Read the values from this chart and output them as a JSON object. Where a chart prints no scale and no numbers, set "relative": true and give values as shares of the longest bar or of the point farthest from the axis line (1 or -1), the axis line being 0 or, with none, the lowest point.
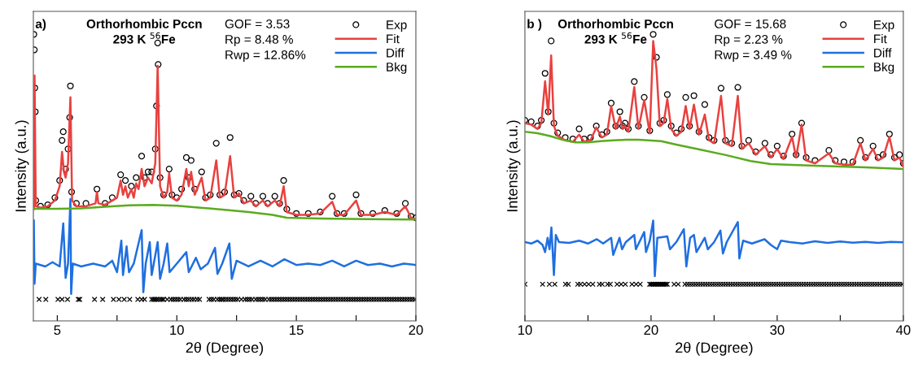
{
  "chart_data": [
    {
      "type": "line",
      "relative": true,
      "xlabel": "2θ (Degree)",
      "ylabel": "Intensity (a.u.)",
      "xlim": [
        4,
        20
      ],
      "xticks": [
        5,
        {
          "value": 7.5,
          "label": null
        },
        10,
        {
          "value": 12.5,
          "label": null
        },
        15,
        {
          "value": 17.5,
          "label": null
        },
        20
      ],
      "tick_labels": "x",
      "legend": "top right",
      "annotations": [
        "a)",
        "Orthorhombic Pccn",
        "293 K $^{56}$Fe",
        "GOF = 3.53",
        "Rp = 8.48 %",
        "Rwp = 12.86%"
      ],
      "series": [
        {
          "name": "Exp",
          "type": "scatter",
          "marker": "circle",
          "color": "#000000",
          "x": [
            4.02,
            4.04,
            4.06,
            4.08,
            4.1,
            4.3,
            4.6,
            4.9,
            5.1,
            5.2,
            5.25,
            5.35,
            5.45,
            5.52,
            5.55,
            5.6,
            5.8,
            6.2,
            6.66,
            7.0,
            7.3,
            7.65,
            7.85,
            8.1,
            8.3,
            8.53,
            8.65,
            8.8,
            8.95,
            9.1,
            9.15,
            9.2,
            9.22,
            9.3,
            9.45,
            9.68,
            9.8,
            10.0,
            10.2,
            10.4,
            10.5,
            10.6,
            10.75,
            11.04,
            11.2,
            11.4,
            11.65,
            11.8,
            12.0,
            12.23,
            12.4,
            12.6,
            12.8,
            13.1,
            13.3,
            13.6,
            13.8,
            14.1,
            14.3,
            14.47,
            14.6,
            15.0,
            15.5,
            16.0,
            16.5,
            16.7,
            17.0,
            17.5,
            17.7,
            18.2,
            18.7,
            19.2,
            19.56,
            19.8,
            20.0
          ],
          "values": [
            1.0,
            0.946,
            0.813,
            0.73,
            0.42,
            0.4,
            0.405,
            0.43,
            0.49,
            0.63,
            0.66,
            0.53,
            0.6,
            0.71,
            0.82,
            0.45,
            0.41,
            0.41,
            0.46,
            0.41,
            0.43,
            0.51,
            0.49,
            0.47,
            0.5,
            0.575,
            0.5,
            0.52,
            0.52,
            0.6,
            0.75,
            0.97,
            0.895,
            0.5,
            0.44,
            0.53,
            0.44,
            0.43,
            0.46,
            0.57,
            0.5,
            0.56,
            0.46,
            0.52,
            0.43,
            0.44,
            0.62,
            0.44,
            0.45,
            0.64,
            0.44,
            0.445,
            0.42,
            0.435,
            0.41,
            0.435,
            0.41,
            0.435,
            0.41,
            0.49,
            0.39,
            0.375,
            0.375,
            0.38,
            0.435,
            0.375,
            0.375,
            0.44,
            0.375,
            0.375,
            0.385,
            0.375,
            0.41,
            0.365,
            0.36
          ]
        },
        {
          "name": "Fit",
          "color": "#e8413f",
          "x": [
            4.02,
            4.05,
            4.1,
            4.3,
            4.6,
            4.9,
            5.1,
            5.2,
            5.28,
            5.35,
            5.45,
            5.55,
            5.62,
            5.8,
            6.2,
            6.6,
            6.66,
            6.72,
            7.0,
            7.3,
            7.5,
            7.65,
            7.75,
            7.85,
            7.95,
            8.1,
            8.2,
            8.3,
            8.4,
            8.53,
            8.65,
            8.8,
            8.95,
            9.1,
            9.2,
            9.3,
            9.45,
            9.6,
            9.68,
            9.8,
            10.0,
            10.2,
            10.4,
            10.5,
            10.6,
            10.75,
            11.04,
            11.2,
            11.4,
            11.65,
            11.8,
            12.0,
            12.23,
            12.4,
            12.6,
            12.8,
            13.1,
            13.3,
            13.6,
            13.8,
            14.1,
            14.3,
            14.47,
            14.6,
            15.0,
            15.5,
            16.0,
            16.5,
            16.7,
            17.0,
            17.5,
            17.7,
            18.2,
            18.7,
            19.2,
            19.56,
            19.8,
            20.0
          ],
          "values": [
            0.39,
            0.856,
            0.4,
            0.395,
            0.4,
            0.42,
            0.47,
            0.59,
            0.52,
            0.5,
            0.55,
            0.78,
            0.42,
            0.4,
            0.4,
            0.41,
            0.45,
            0.41,
            0.405,
            0.42,
            0.43,
            0.49,
            0.44,
            0.47,
            0.43,
            0.46,
            0.43,
            0.48,
            0.46,
            0.53,
            0.47,
            0.5,
            0.48,
            0.55,
            0.89,
            0.47,
            0.43,
            0.45,
            0.515,
            0.43,
            0.42,
            0.44,
            0.53,
            0.47,
            0.52,
            0.44,
            0.5,
            0.42,
            0.43,
            0.56,
            0.43,
            0.44,
            0.575,
            0.43,
            0.445,
            0.41,
            0.42,
            0.4,
            0.42,
            0.4,
            0.42,
            0.4,
            0.47,
            0.38,
            0.37,
            0.37,
            0.375,
            0.416,
            0.37,
            0.37,
            0.42,
            0.37,
            0.37,
            0.38,
            0.37,
            0.4,
            0.36,
            0.355
          ]
        },
        {
          "name": "Diff",
          "color": "#1f6fe0",
          "x": [
            4.02,
            4.05,
            4.1,
            4.5,
            4.8,
            5.1,
            5.25,
            5.35,
            5.45,
            5.55,
            5.58,
            5.65,
            6.0,
            6.5,
            7.0,
            7.3,
            7.5,
            7.68,
            7.75,
            7.9,
            8.0,
            8.2,
            8.53,
            8.6,
            8.7,
            8.87,
            8.95,
            9.2,
            9.3,
            9.45,
            9.6,
            9.7,
            10.0,
            10.4,
            10.5,
            10.8,
            11.0,
            11.3,
            11.6,
            11.7,
            11.9,
            12.2,
            12.3,
            12.5,
            13.0,
            13.5,
            14.0,
            14.5,
            15.0,
            15.5,
            16.0,
            16.5,
            17.0,
            17.5,
            18.0,
            18.5,
            19.0,
            19.5,
            20.0
          ],
          "values": [
            0.35,
            0.13,
            0.2,
            0.19,
            0.205,
            0.19,
            0.34,
            0.15,
            0.2,
            0.425,
            0.094,
            0.2,
            0.19,
            0.2,
            0.19,
            0.21,
            0.17,
            0.28,
            0.16,
            0.26,
            0.17,
            0.2,
            0.317,
            0.1,
            0.2,
            0.275,
            0.16,
            0.275,
            0.147,
            0.2,
            0.27,
            0.17,
            0.2,
            0.24,
            0.17,
            0.22,
            0.18,
            0.2,
            0.255,
            0.164,
            0.2,
            0.27,
            0.147,
            0.21,
            0.19,
            0.21,
            0.19,
            0.215,
            0.195,
            0.2,
            0.195,
            0.21,
            0.19,
            0.21,
            0.195,
            0.2,
            0.19,
            0.2,
            0.195
          ]
        },
        {
          "name": "Bkg",
          "color": "#5aab1e",
          "x": [
            4.0,
            5.0,
            6.0,
            7.0,
            8.0,
            9.0,
            10.0,
            11.0,
            12.0,
            13.0,
            14.0,
            14.6,
            16.0,
            18.0,
            20.0
          ],
          "values": [
            0.391,
            0.391,
            0.393,
            0.398,
            0.403,
            0.405,
            0.402,
            0.395,
            0.388,
            0.38,
            0.37,
            0.36,
            0.357,
            0.355,
            0.354
          ]
        },
        {
          "type": "scatter",
          "marker": "cross",
          "color": "#000000",
          "x": [
            4.24,
            4.52,
            5.03,
            5.2,
            5.43,
            5.88,
            5.94,
            6.56,
            6.9,
            7.35,
            7.58,
            7.8,
            8.03,
            8.37,
            8.53,
            8.65,
            8.95,
            9.02,
            9.08,
            9.15,
            9.22,
            9.3,
            9.38,
            9.45,
            9.6,
            9.75,
            9.85,
            9.95,
            10.05,
            10.15,
            10.3,
            10.4,
            10.5,
            10.62,
            10.72,
            10.85,
            10.95,
            11.35,
            11.45,
            11.55,
            11.7,
            11.8,
            11.88,
            11.95,
            12.05,
            12.15,
            12.25,
            12.35,
            12.45,
            12.55,
            12.7,
            12.85,
            12.95,
            13.05,
            13.15,
            13.3,
            13.4,
            13.5,
            13.6,
            13.7,
            13.85,
            13.95,
            14.05,
            14.15,
            14.25,
            14.35,
            14.45,
            14.55,
            14.65,
            14.75,
            14.85,
            14.95,
            15.05,
            15.15,
            15.25,
            15.35,
            15.45,
            15.55,
            15.65,
            15.75,
            15.85,
            15.95,
            16.05,
            16.15,
            16.25,
            16.35,
            16.45,
            16.55,
            16.65,
            16.75,
            16.85,
            16.95,
            17.05,
            17.15,
            17.25,
            17.35,
            17.45,
            17.55,
            17.65,
            17.75,
            17.85,
            17.95,
            18.05,
            18.15,
            18.25,
            18.35,
            18.45,
            18.55,
            18.65,
            18.75,
            18.85,
            18.95,
            19.05,
            19.15,
            19.25,
            19.35,
            19.45,
            19.55,
            19.65,
            19.75,
            19.85,
            19.95
          ],
          "values": [
            0.075,
            0.075,
            0.075,
            0.075,
            0.075,
            0.075,
            0.075,
            0.075,
            0.075,
            0.075,
            0.075,
            0.075,
            0.075,
            0.075,
            0.075,
            0.075,
            0.075,
            0.075,
            0.075,
            0.075,
            0.075,
            0.075,
            0.075,
            0.075,
            0.075,
            0.075,
            0.075,
            0.075,
            0.075,
            0.075,
            0.075,
            0.075,
            0.075,
            0.075,
            0.075,
            0.075,
            0.075,
            0.075,
            0.075,
            0.075,
            0.075,
            0.075,
            0.075,
            0.075,
            0.075,
            0.075,
            0.075,
            0.075,
            0.075,
            0.075,
            0.075,
            0.075,
            0.075,
            0.075,
            0.075,
            0.075,
            0.075,
            0.075,
            0.075,
            0.075,
            0.075,
            0.075,
            0.075,
            0.075,
            0.075,
            0.075,
            0.075,
            0.075,
            0.075,
            0.075,
            0.075,
            0.075,
            0.075,
            0.075,
            0.075,
            0.075,
            0.075,
            0.075,
            0.075,
            0.075,
            0.075,
            0.075,
            0.075,
            0.075,
            0.075,
            0.075,
            0.075,
            0.075,
            0.075,
            0.075,
            0.075,
            0.075,
            0.075,
            0.075,
            0.075,
            0.075,
            0.075,
            0.075,
            0.075,
            0.075,
            0.075,
            0.075,
            0.075,
            0.075,
            0.075,
            0.075,
            0.075,
            0.075,
            0.075,
            0.075,
            0.075,
            0.075,
            0.075,
            0.075,
            0.075,
            0.075,
            0.075,
            0.075,
            0.075,
            0.075,
            0.075,
            0.075
          ]
        }
      ]
    },
    {
      "type": "line",
      "relative": true,
      "xlabel": "2θ (Degree)",
      "ylabel": "Intensity (a.u.)",
      "xlim": [
        10,
        40
      ],
      "xticks": [
        10,
        {
          "value": 15,
          "label": null
        },
        20,
        {
          "value": 25,
          "label": null
        },
        30,
        {
          "value": 35,
          "label": null
        },
        40
      ],
      "tick_labels": "x",
      "legend": "top right",
      "annotations": [
        "b )",
        "Orthorhombic Pccn",
        "293 K $^{56}$Fe",
        "GOF = 15.68",
        "Rp = 2.23 %",
        "Rwp = 3.49 %"
      ],
      "series": [
        {
          "name": "Exp",
          "type": "scatter",
          "marker": "circle",
          "color": "#000000",
          "x": [
            10.0,
            10.5,
            11.0,
            11.3,
            11.6,
            11.85,
            12.08,
            12.3,
            12.6,
            13.2,
            13.8,
            14.3,
            14.7,
            15.2,
            15.66,
            16.1,
            16.5,
            16.84,
            17.2,
            17.53,
            17.75,
            17.94,
            18.2,
            18.67,
            19.0,
            19.46,
            19.9,
            20.17,
            20.43,
            20.7,
            21.0,
            21.29,
            21.6,
            22.0,
            22.4,
            22.75,
            23.05,
            23.4,
            23.8,
            24.26,
            24.6,
            25.0,
            25.55,
            25.9,
            26.4,
            26.88,
            27.2,
            27.74,
            28.3,
            29.03,
            29.5,
            30.0,
            30.5,
            31.18,
            31.5,
            31.94,
            32.3,
            33.0,
            34.1,
            34.6,
            35.3,
            36.0,
            36.6,
            37.0,
            37.6,
            38.0,
            38.4,
            38.9,
            39.3,
            39.7,
            40.0
          ],
          "values": [
            0.7,
            0.695,
            0.68,
            0.7,
            0.864,
            0.73,
            0.977,
            0.69,
            0.656,
            0.64,
            0.635,
            0.67,
            0.635,
            0.64,
            0.68,
            0.65,
            0.66,
            0.76,
            0.68,
            0.73,
            0.68,
            0.69,
            0.67,
            0.835,
            0.68,
            0.78,
            0.664,
            1.0,
            0.92,
            0.69,
            0.7,
            0.79,
            0.68,
            0.656,
            0.67,
            0.78,
            0.68,
            0.786,
            0.66,
            0.755,
            0.64,
            0.63,
            0.812,
            0.63,
            0.62,
            0.815,
            0.61,
            0.63,
            0.59,
            0.62,
            0.58,
            0.61,
            0.575,
            0.652,
            0.58,
            0.69,
            0.57,
            0.56,
            0.595,
            0.56,
            0.555,
            0.555,
            0.63,
            0.57,
            0.61,
            0.57,
            0.58,
            0.652,
            0.57,
            0.58,
            0.55
          ]
        },
        {
          "name": "Fit",
          "color": "#e8413f",
          "x": [
            10.0,
            10.5,
            11.0,
            11.3,
            11.6,
            11.85,
            12.08,
            12.3,
            12.6,
            13.2,
            13.8,
            14.3,
            14.7,
            15.2,
            15.66,
            16.1,
            16.5,
            16.84,
            17.2,
            17.53,
            17.75,
            17.94,
            18.2,
            18.67,
            19.0,
            19.46,
            19.9,
            20.17,
            20.43,
            20.7,
            21.0,
            21.29,
            21.6,
            22.0,
            22.4,
            22.75,
            23.05,
            23.4,
            23.8,
            24.26,
            24.6,
            25.0,
            25.55,
            25.9,
            26.4,
            26.88,
            27.2,
            27.74,
            28.3,
            29.03,
            29.5,
            30.0,
            30.5,
            31.18,
            31.5,
            31.94,
            32.3,
            33.0,
            34.1,
            34.6,
            35.3,
            36.0,
            36.6,
            37.0,
            37.6,
            38.0,
            38.4,
            38.9,
            39.3,
            39.7,
            40.0
          ],
          "values": [
            0.69,
            0.685,
            0.67,
            0.69,
            0.836,
            0.72,
            0.926,
            0.68,
            0.646,
            0.63,
            0.625,
            0.65,
            0.625,
            0.63,
            0.675,
            0.64,
            0.65,
            0.75,
            0.67,
            0.713,
            0.67,
            0.68,
            0.66,
            0.816,
            0.67,
            0.77,
            0.654,
            0.977,
            0.88,
            0.68,
            0.69,
            0.774,
            0.67,
            0.646,
            0.66,
            0.75,
            0.67,
            0.755,
            0.65,
            0.72,
            0.63,
            0.62,
            0.785,
            0.62,
            0.61,
            0.785,
            0.6,
            0.62,
            0.58,
            0.61,
            0.57,
            0.6,
            0.565,
            0.642,
            0.57,
            0.685,
            0.56,
            0.55,
            0.585,
            0.55,
            0.545,
            0.545,
            0.62,
            0.56,
            0.6,
            0.56,
            0.57,
            0.642,
            0.56,
            0.57,
            0.54
          ]
        },
        {
          "name": "Diff",
          "color": "#1f6fe0",
          "x": [
            10.0,
            10.5,
            11.0,
            11.4,
            11.6,
            11.8,
            11.95,
            12.1,
            12.3,
            12.45,
            12.7,
            13.5,
            14.3,
            15.0,
            15.7,
            16.2,
            16.84,
            17.0,
            17.5,
            17.7,
            18.0,
            18.67,
            18.8,
            19.46,
            19.6,
            19.9,
            20.17,
            20.3,
            20.5,
            21.29,
            21.5,
            22.0,
            22.6,
            22.8,
            23.1,
            23.4,
            23.6,
            24.26,
            24.5,
            25.0,
            25.5,
            25.7,
            26.0,
            26.88,
            27.0,
            27.3,
            28.0,
            29.0,
            29.5,
            30.0,
            30.3,
            31.0,
            32.0,
            33.0,
            34.0,
            35.0,
            36.0,
            37.0,
            38.0,
            39.0,
            40.0
          ],
          "values": [
            0.275,
            0.27,
            0.28,
            0.265,
            0.24,
            0.29,
            0.25,
            0.326,
            0.16,
            0.3,
            0.275,
            0.272,
            0.28,
            0.27,
            0.285,
            0.27,
            0.29,
            0.23,
            0.29,
            0.25,
            0.275,
            0.3,
            0.25,
            0.31,
            0.24,
            0.28,
            0.35,
            0.156,
            0.29,
            0.295,
            0.25,
            0.275,
            0.32,
            0.19,
            0.29,
            0.3,
            0.24,
            0.29,
            0.25,
            0.275,
            0.315,
            0.235,
            0.275,
            0.345,
            0.218,
            0.28,
            0.27,
            0.285,
            0.265,
            0.25,
            0.28,
            0.275,
            0.27,
            0.278,
            0.272,
            0.277,
            0.273,
            0.276,
            0.272,
            0.276,
            0.274
          ]
        },
        {
          "name": "Bkg",
          "color": "#5aab1e",
          "x": [
            10,
            11,
            12,
            13,
            14,
            15,
            16,
            17,
            18,
            19,
            20.8,
            22,
            24,
            26,
            27.9,
            29.5,
            31.2,
            34,
            37,
            40
          ],
          "values": [
            0.66,
            0.655,
            0.645,
            0.632,
            0.623,
            0.623,
            0.627,
            0.63,
            0.632,
            0.632,
            0.627,
            0.615,
            0.597,
            0.578,
            0.558,
            0.547,
            0.544,
            0.54,
            0.536,
            0.53
          ]
        },
        {
          "type": "scatter",
          "marker": "cross",
          "color": "#000000",
          "x": [
            10.0,
            11.4,
            11.94,
            12.37,
            13.22,
            13.44,
            14.19,
            14.41,
            14.73,
            15.05,
            15.38,
            15.91,
            16.13,
            16.56,
            16.77,
            17.31,
            17.63,
            17.96,
            18.49,
            18.82,
            19.14,
            19.89,
            20.0,
            20.1,
            20.2,
            20.3,
            20.38,
            20.5,
            20.6,
            20.7,
            20.8,
            20.9,
            21.0,
            21.1,
            21.2,
            21.29,
            21.83,
            22.15,
            22.69,
            22.9,
            23.1,
            23.3,
            23.5,
            23.7,
            23.9,
            24.1,
            24.3,
            24.5,
            24.7,
            24.9,
            25.1,
            25.3,
            25.5,
            25.7,
            25.9,
            26.1,
            26.3,
            26.5,
            26.7,
            26.9,
            27.1,
            27.3,
            27.5,
            27.7,
            27.9,
            28.1,
            28.3,
            28.5,
            28.7,
            28.9,
            29.1,
            29.3,
            29.5,
            29.7,
            29.9,
            30.1,
            30.3,
            30.5,
            30.7,
            30.9,
            31.1,
            31.3,
            31.5,
            31.7,
            31.9,
            32.1,
            32.3,
            32.5,
            32.7,
            32.9,
            33.1,
            33.3,
            33.5,
            33.7,
            33.9,
            34.1,
            34.3,
            34.5,
            34.7,
            34.9,
            35.1,
            35.3,
            35.5,
            35.7,
            35.9,
            36.1,
            36.3,
            36.5,
            36.7,
            36.9,
            37.1,
            37.3,
            37.5,
            37.7,
            37.9,
            38.1,
            38.3,
            38.5,
            38.7,
            38.9,
            39.1,
            39.3,
            39.5,
            39.7,
            39.9
          ],
          "values": [
            0.128,
            0.128,
            0.128,
            0.128,
            0.128,
            0.128,
            0.128,
            0.128,
            0.128,
            0.128,
            0.128,
            0.128,
            0.128,
            0.128,
            0.128,
            0.128,
            0.128,
            0.128,
            0.128,
            0.128,
            0.128,
            0.128,
            0.128,
            0.128,
            0.128,
            0.128,
            0.128,
            0.128,
            0.128,
            0.128,
            0.128,
            0.128,
            0.128,
            0.128,
            0.128,
            0.128,
            0.128,
            0.128,
            0.128,
            0.128,
            0.128,
            0.128,
            0.128,
            0.128,
            0.128,
            0.128,
            0.128,
            0.128,
            0.128,
            0.128,
            0.128,
            0.128,
            0.128,
            0.128,
            0.128,
            0.128,
            0.128,
            0.128,
            0.128,
            0.128,
            0.128,
            0.128,
            0.128,
            0.128,
            0.128,
            0.128,
            0.128,
            0.128,
            0.128,
            0.128,
            0.128,
            0.128,
            0.128,
            0.128,
            0.128,
            0.128,
            0.128,
            0.128,
            0.128,
            0.128,
            0.128,
            0.128,
            0.128,
            0.128,
            0.128,
            0.128,
            0.128,
            0.128,
            0.128,
            0.128,
            0.128,
            0.128,
            0.128,
            0.128,
            0.128,
            0.128,
            0.128,
            0.128,
            0.128,
            0.128,
            0.128,
            0.128,
            0.128,
            0.128,
            0.128,
            0.128,
            0.128,
            0.128,
            0.128,
            0.128,
            0.128,
            0.128,
            0.128,
            0.128,
            0.128,
            0.128,
            0.128,
            0.128,
            0.128,
            0.128,
            0.128,
            0.128,
            0.128,
            0.128,
            0.128
          ]
        }
      ]
    }
  ]
}
